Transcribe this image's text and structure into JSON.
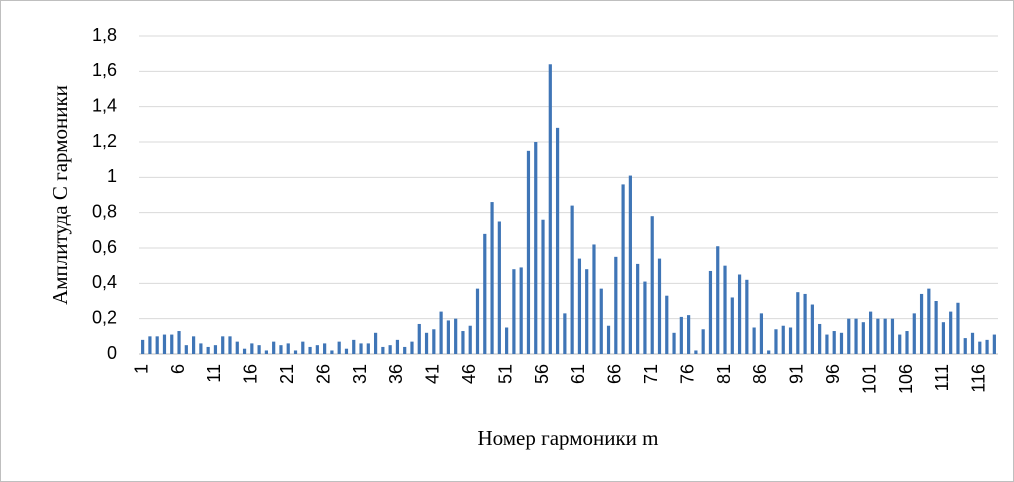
{
  "chart_data": {
    "type": "bar",
    "x_label": "Номер гармоники m",
    "y_label": "Амплитуда С  гармоники",
    "categories": [
      "1",
      null,
      null,
      null,
      null,
      "6",
      null,
      null,
      null,
      null,
      "11",
      null,
      null,
      null,
      null,
      "16",
      null,
      null,
      null,
      null,
      "21",
      null,
      null,
      null,
      null,
      "26",
      null,
      null,
      null,
      null,
      "31",
      null,
      null,
      null,
      null,
      "36",
      null,
      null,
      null,
      null,
      "41",
      null,
      null,
      null,
      null,
      "46",
      null,
      null,
      null,
      null,
      "51",
      null,
      null,
      null,
      null,
      "56",
      null,
      null,
      null,
      null,
      "61",
      null,
      null,
      null,
      null,
      "66",
      null,
      null,
      null,
      null,
      "71",
      null,
      null,
      null,
      null,
      "76",
      null,
      null,
      null,
      null,
      "81",
      null,
      null,
      null,
      null,
      "86",
      null,
      null,
      null,
      null,
      "91",
      null,
      null,
      null,
      null,
      "96",
      null,
      null,
      null,
      null,
      "101",
      null,
      null,
      null,
      null,
      "106",
      null,
      null,
      null,
      null,
      "111",
      null,
      null,
      null,
      null,
      "116",
      null,
      null
    ],
    "values": [
      0.08,
      0.1,
      0.1,
      0.11,
      0.11,
      0.13,
      0.05,
      0.1,
      0.06,
      0.04,
      0.05,
      0.1,
      0.1,
      0.07,
      0.03,
      0.06,
      0.05,
      0.02,
      0.07,
      0.05,
      0.06,
      0.02,
      0.07,
      0.04,
      0.05,
      0.06,
      0.02,
      0.07,
      0.03,
      0.08,
      0.06,
      0.06,
      0.12,
      0.04,
      0.05,
      0.08,
      0.04,
      0.07,
      0.17,
      0.12,
      0.14,
      0.24,
      0.19,
      0.2,
      0.13,
      0.16,
      0.37,
      0.68,
      0.86,
      0.75,
      0.15,
      0.48,
      0.49,
      1.15,
      1.2,
      0.76,
      1.64,
      1.28,
      0.23,
      0.84,
      0.54,
      0.48,
      0.62,
      0.37,
      0.16,
      0.55,
      0.96,
      1.01,
      0.51,
      0.41,
      0.78,
      0.54,
      0.33,
      0.12,
      0.21,
      0.22,
      0.02,
      0.14,
      0.47,
      0.61,
      0.5,
      0.32,
      0.45,
      0.42,
      0.15,
      0.23,
      0.02,
      0.14,
      0.16,
      0.15,
      0.35,
      0.34,
      0.28,
      0.17,
      0.11,
      0.13,
      0.12,
      0.2,
      0.2,
      0.18,
      0.24,
      0.2,
      0.2,
      0.2,
      0.11,
      0.13,
      0.23,
      0.34,
      0.37,
      0.3,
      0.18,
      0.24,
      0.29,
      0.09,
      0.12,
      0.07,
      0.08,
      0.11
    ],
    "color": "#3f75b6",
    "ylim": [
      0,
      1.8
    ],
    "yticks": [
      0,
      {
        "value": 0.2,
        "label": "0,2"
      },
      {
        "value": 0.4,
        "label": "0,4"
      },
      {
        "value": 0.6,
        "label": "0,6"
      },
      {
        "value": 0.8,
        "label": "0,8"
      },
      1,
      {
        "value": 1.2,
        "label": "1,2"
      },
      {
        "value": 1.4,
        "label": "1,4"
      },
      {
        "value": 1.6,
        "label": "1,6"
      },
      {
        "value": 1.8,
        "label": "1,8"
      }
    ],
    "grid": true
  }
}
